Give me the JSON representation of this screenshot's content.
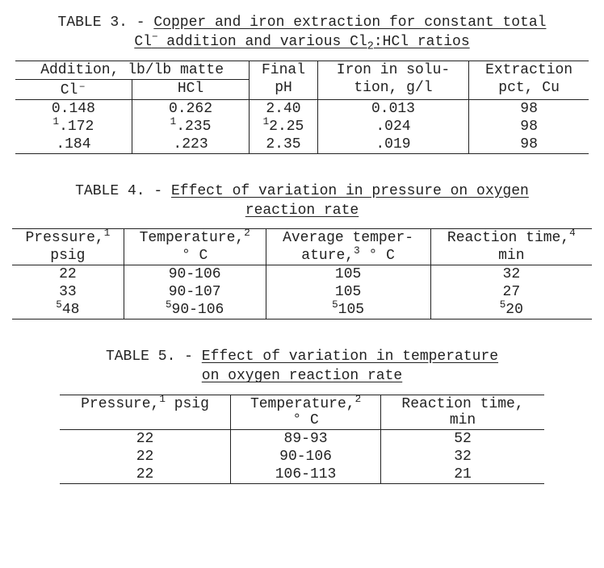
{
  "table3": {
    "title_line1_prefix": "TABLE 3. - ",
    "title_line1_u": "Copper and iron extraction for constant total",
    "title_line2_u_a": "Cl",
    "title_line2_u_b": " addition and various Cl",
    "title_line2_u_c": ":HCl ratios",
    "head_addition": "Addition, lb/lb matte",
    "head_final": "Final",
    "head_iron": "Iron in solu-",
    "head_extraction": "Extraction",
    "head_cl": "Cl⁻",
    "head_hcl": "HCl",
    "head_ph": "pH",
    "head_tion": "tion, g/l",
    "head_pctcu": "pct, Cu",
    "rows": [
      {
        "cl": "0.148",
        "hcl": "0.262",
        "ph": "2.40",
        "iron": "0.013",
        "ext": "98",
        "sup": ""
      },
      {
        "cl": ".172",
        "hcl": ".235",
        "ph": "2.25",
        "iron": ".024",
        "ext": "98",
        "sup": "1"
      },
      {
        "cl": ".184",
        "hcl": ".223",
        "ph": "2.35",
        "iron": ".019",
        "ext": "98",
        "sup": ""
      }
    ]
  },
  "table4": {
    "title_line1_prefix": "TABLE 4. - ",
    "title_line1_u": "Effect of variation in pressure on oxygen",
    "title_line2_u": "reaction rate",
    "h_pressure_a": "Pressure,",
    "h_pressure_b": "psig",
    "h_temp_a": "Temperature,",
    "h_temp_b": "° C",
    "h_avg_a": "Average temper-",
    "h_avg_b": "ature,",
    "h_avg_c": " ° C",
    "h_time_a": "Reaction time,",
    "h_time_b": "min",
    "sup1": "1",
    "sup2": "2",
    "sup3": "3",
    "sup4": "4",
    "rows": [
      {
        "p": "22",
        "t": "90-106",
        "a": "105",
        "r": "32",
        "sup": ""
      },
      {
        "p": "33",
        "t": "90-107",
        "a": "105",
        "r": "27",
        "sup": ""
      },
      {
        "p": "48",
        "t": "90-106",
        "a": "105",
        "r": "20",
        "sup": "5"
      }
    ]
  },
  "table5": {
    "title_line1_prefix": "TABLE 5. - ",
    "title_line1_u": "Effect of variation in temperature",
    "title_line2_u": "on oxygen reaction rate",
    "h_pressure_a": "Pressure,",
    "h_pressure_b": " psig",
    "h_temp_a": "Temperature,",
    "h_temp_b": "° C",
    "h_time_a": "Reaction time,",
    "h_time_b": "min",
    "sup1": "1",
    "sup2": "2",
    "rows": [
      {
        "p": "22",
        "t": "89-93",
        "r": "52"
      },
      {
        "p": "22",
        "t": "90-106",
        "r": "32"
      },
      {
        "p": "22",
        "t": "106-113",
        "r": "21"
      }
    ]
  }
}
